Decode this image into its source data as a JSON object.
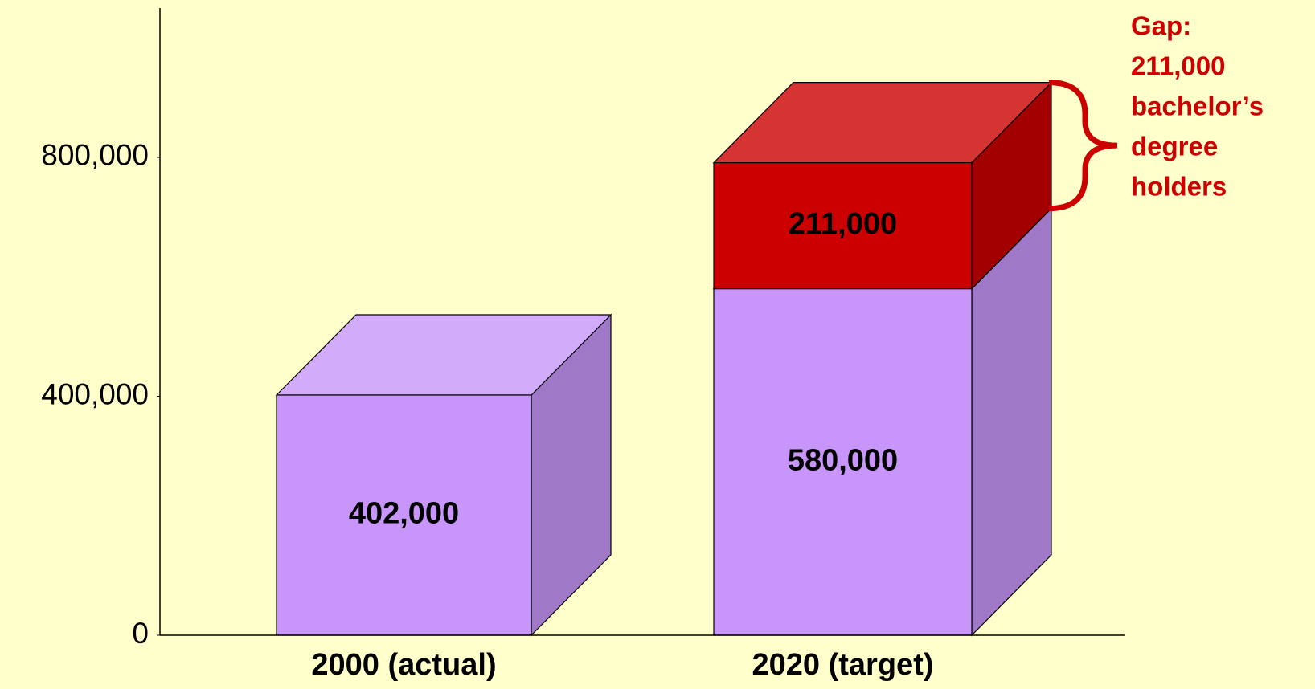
{
  "chart_data": {
    "type": "bar3d_stacked",
    "categories": [
      "2000 (actual)",
      "2020 (target)"
    ],
    "series": [
      {
        "color": "#c896fa",
        "values": [
          402000,
          580000
        ],
        "value_labels": [
          "402,000",
          "580,000"
        ]
      },
      {
        "color": "#cc0000",
        "values": [
          null,
          211000
        ],
        "value_labels": [
          null,
          "211,000"
        ]
      }
    ],
    "ylim": [
      0,
      1050000
    ],
    "yticks": [
      {
        "value": 0,
        "label": "0"
      },
      {
        "value": 400000,
        "label": "400,000"
      },
      {
        "value": 800000,
        "label": "800,000"
      }
    ],
    "annotation": {
      "color": "#cc0000",
      "lines": [
        "Gap:",
        "211,000",
        "bachelor’s",
        "degree",
        "holders"
      ]
    }
  }
}
